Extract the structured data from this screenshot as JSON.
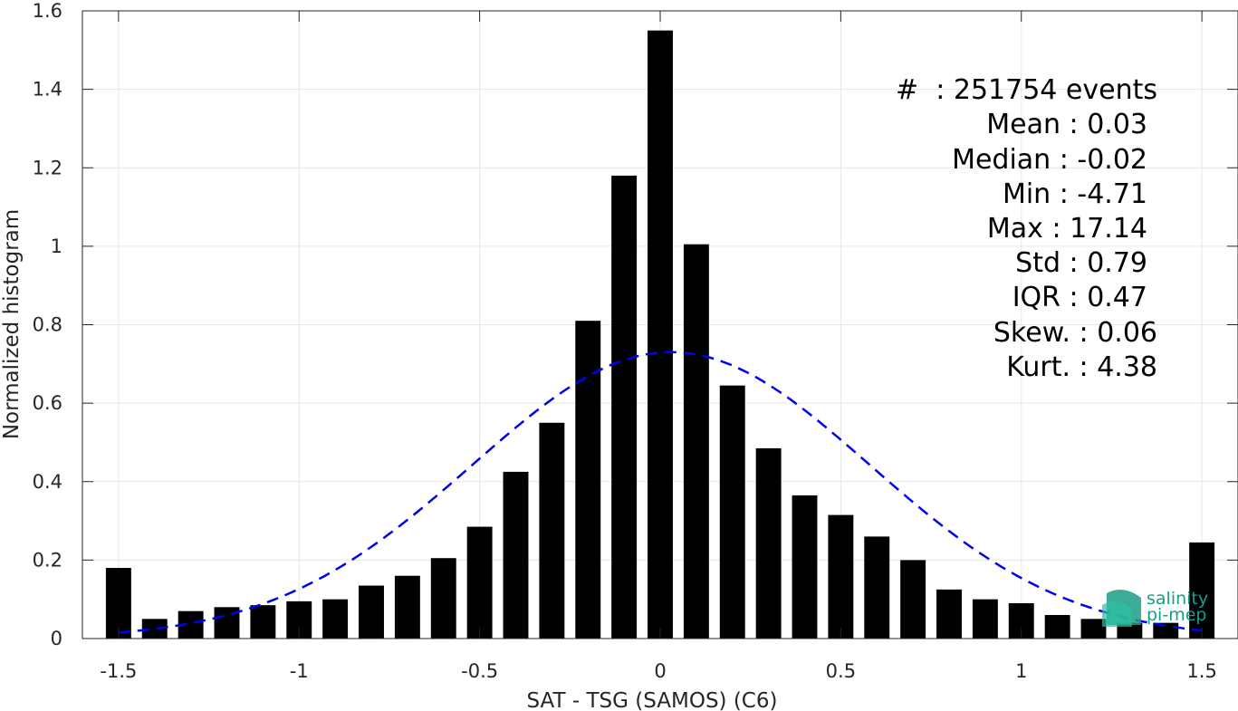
{
  "chart_data": {
    "type": "bar",
    "xlabel": "SAT - TSG (SAMOS) (C6)",
    "ylabel": "Normalized histogram",
    "xlim": [
      -1.6,
      1.6
    ],
    "ylim": [
      0,
      1.6
    ],
    "xticks": [
      "-1.5",
      "-1",
      "-0.5",
      "0",
      "0.5",
      "1",
      "1.5"
    ],
    "xtick_values": [
      -1.5,
      -1,
      -0.5,
      0,
      0.5,
      1,
      1.5
    ],
    "yticks": [
      "0",
      "0.2",
      "0.4",
      "0.6",
      "0.8",
      "1",
      "1.2",
      "1.4",
      "1.6"
    ],
    "ytick_values": [
      0,
      0.2,
      0.4,
      0.6,
      0.8,
      1,
      1.2,
      1.4,
      1.6
    ],
    "grid": true,
    "bars": {
      "color": "#000000",
      "x": [
        -1.5,
        -1.4,
        -1.3,
        -1.2,
        -1.1,
        -1.0,
        -0.9,
        -0.8,
        -0.7,
        -0.6,
        -0.5,
        -0.4,
        -0.3,
        -0.2,
        -0.1,
        0.0,
        0.1,
        0.2,
        0.3,
        0.4,
        0.5,
        0.6,
        0.7,
        0.8,
        0.9,
        1.0,
        1.1,
        1.2,
        1.3,
        1.4,
        1.5
      ],
      "values": [
        0.18,
        0.05,
        0.07,
        0.08,
        0.085,
        0.095,
        0.1,
        0.135,
        0.16,
        0.205,
        0.285,
        0.425,
        0.55,
        0.81,
        1.18,
        1.55,
        1.005,
        0.645,
        0.485,
        0.365,
        0.315,
        0.26,
        0.2,
        0.125,
        0.1,
        0.09,
        0.06,
        0.05,
        0.04,
        0.04,
        0.245
      ]
    },
    "fit": {
      "style": "dashed",
      "color": "#0000ee",
      "distribution": "normal",
      "mean": 0.03,
      "std": 0.55,
      "peak": 0.73,
      "x_range": [
        -1.5,
        1.5
      ]
    }
  },
  "stats": [
    "#  : 251754 events",
    "Mean : 0.03",
    "Median : -0.02",
    "Min : -4.71",
    "Max : 17.14",
    "Std : 0.79",
    "IQR : 0.47",
    "Skew. : 0.06",
    "Kurt. : 4.38"
  ],
  "logo": {
    "line1": "salinity",
    "line2": "pi-mep",
    "color": "#16a08a"
  }
}
